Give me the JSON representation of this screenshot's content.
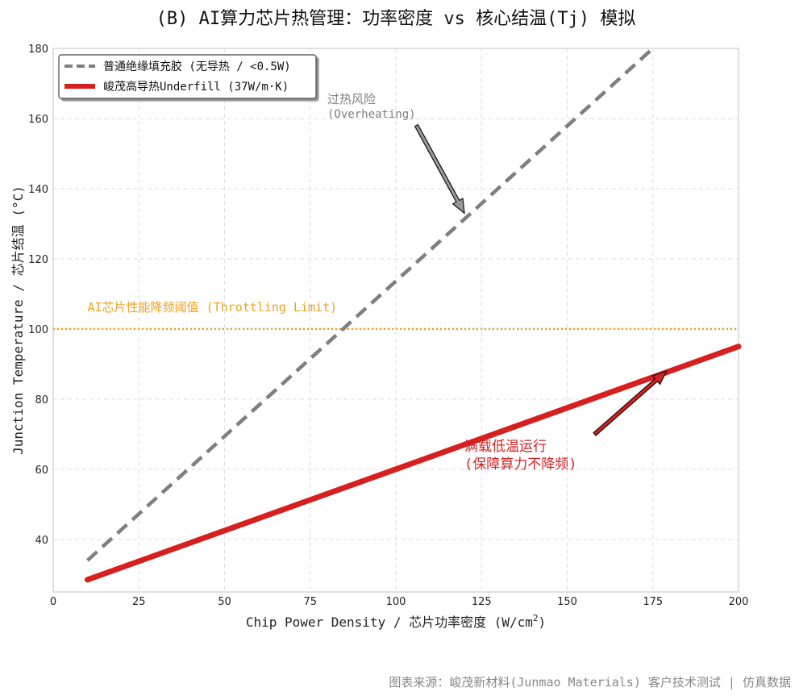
{
  "chart_data": {
    "type": "line",
    "title": "(B) AI算力芯片热管理：功率密度 vs 核心结温(Tj) 模拟",
    "xlabel": "Chip Power Density / 芯片功率密度 (W/cm",
    "xlabel_sup": "2",
    "xlabel_end": ")",
    "ylabel": "Junction Temperature / 芯片结温 (°C)",
    "xlim": [
      0,
      200
    ],
    "ylim": [
      25,
      180
    ],
    "xticks": [
      0,
      25,
      50,
      75,
      100,
      125,
      150,
      175,
      200
    ],
    "yticks": [
      40,
      60,
      80,
      100,
      120,
      140,
      160,
      180
    ],
    "grid": true,
    "legend_position": "top-left",
    "series": [
      {
        "name": "普通绝缘填充胶 (无导热 / <0.5W)",
        "style": "dashed",
        "color": "#7f7f7f",
        "x": [
          10,
          175
        ],
        "y": [
          34,
          180
        ]
      },
      {
        "name": "峻茂高导热Underfill (37W/m·K)",
        "style": "solid",
        "color": "#d62020",
        "x": [
          10,
          200
        ],
        "y": [
          28.5,
          95
        ]
      }
    ],
    "threshold": {
      "y": 100,
      "color": "#f0a020",
      "label": "AI芯片性能降频阈值 (Throttling Limit)"
    },
    "annotations": [
      {
        "id": "overheat",
        "line1": "过热风险",
        "line2": "(Overheating)",
        "arrow_from": [
          106,
          158
        ],
        "arrow_to": [
          120,
          133
        ],
        "color": "#7f7f7f",
        "head_color": "#999999"
      },
      {
        "id": "safe",
        "line1": "满载低温运行",
        "line2": "(保障算力不降频)",
        "arrow_from": [
          158,
          70
        ],
        "arrow_to": [
          179,
          88
        ],
        "color": "#d62020",
        "head_color": "#d62020"
      }
    ]
  },
  "footer": "图表来源：峻茂新材料(Junmao Materials) 客户技术测试 | 仿真数据"
}
